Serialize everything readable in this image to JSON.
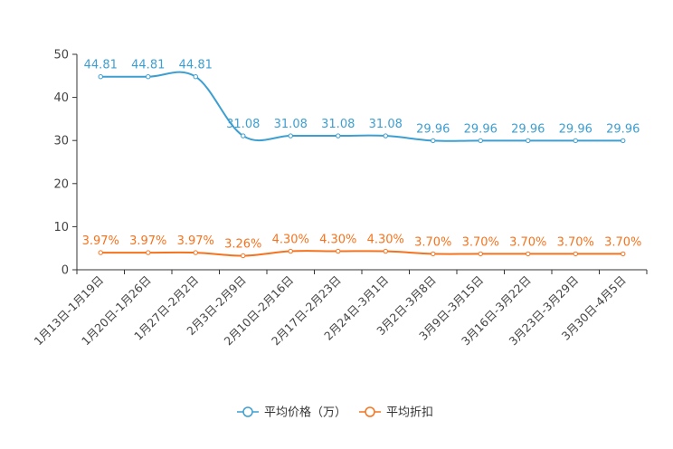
{
  "chart_data": {
    "type": "line",
    "title": "",
    "xlabel": "",
    "ylabel": "",
    "ylim": [
      0,
      50
    ],
    "yticks": [
      0,
      10,
      20,
      30,
      40,
      50
    ],
    "grid": false,
    "legend_position": "bottom-center",
    "categories": [
      "1月13日-1月19日",
      "1月20日-1月26日",
      "1月27日-2月2日",
      "2月3日-2月9日",
      "2月10日-2月16日",
      "2月17日-2月23日",
      "2月24日-3月1日",
      "3月2日-3月8日",
      "3月9日-3月15日",
      "3月16日-3月22日",
      "3月23日-3月29日",
      "3月30日-4月5日"
    ],
    "series": [
      {
        "name": "平均价格（万）",
        "color": "#3d9fd1",
        "values": [
          44.81,
          44.81,
          44.81,
          31.08,
          31.08,
          31.08,
          31.08,
          29.96,
          29.96,
          29.96,
          29.96,
          29.96
        ],
        "labels": [
          "44.81",
          "44.81",
          "44.81",
          "31.08",
          "31.08",
          "31.08",
          "31.08",
          "29.96",
          "29.96",
          "29.96",
          "29.96",
          "29.96"
        ]
      },
      {
        "name": "平均折扣",
        "color": "#f5731e",
        "values": [
          3.97,
          3.97,
          3.97,
          3.26,
          4.3,
          4.3,
          4.3,
          3.7,
          3.7,
          3.7,
          3.7,
          3.7
        ],
        "labels": [
          "3.97%",
          "3.97%",
          "3.97%",
          "3.26%",
          "4.30%",
          "4.30%",
          "4.30%",
          "3.70%",
          "3.70%",
          "3.70%",
          "3.70%",
          "3.70%"
        ]
      }
    ]
  }
}
